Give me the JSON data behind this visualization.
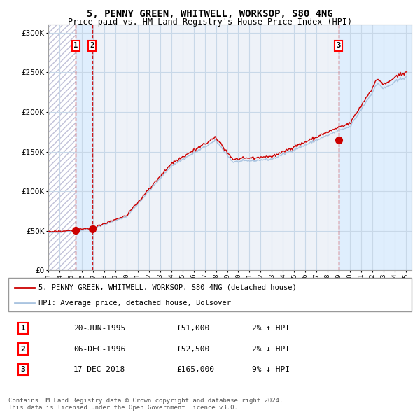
{
  "title": "5, PENNY GREEN, WHITWELL, WORKSOP, S80 4NG",
  "subtitle": "Price paid vs. HM Land Registry's House Price Index (HPI)",
  "legend_line1": "5, PENNY GREEN, WHITWELL, WORKSOP, S80 4NG (detached house)",
  "legend_line2": "HPI: Average price, detached house, Bolsover",
  "transactions": [
    {
      "num": 1,
      "date": "20-JUN-1995",
      "price": 51000,
      "pct": "2%",
      "dir": "↑",
      "year": 1995.47
    },
    {
      "num": 2,
      "date": "06-DEC-1996",
      "price": 52500,
      "pct": "2%",
      "dir": "↓",
      "year": 1996.93
    },
    {
      "num": 3,
      "date": "17-DEC-2018",
      "price": 165000,
      "pct": "9%",
      "dir": "↓",
      "year": 2018.96
    }
  ],
  "hpi_color": "#aac4e0",
  "price_color": "#cc0000",
  "dot_color": "#cc0000",
  "shade3_color": "#ddeeff",
  "hatch_color": "#c0c0d8",
  "dashed_line_color": "#cc0000",
  "grid_color": "#c8d8e8",
  "bg_color": "#eef2f8",
  "ylim": [
    0,
    310000
  ],
  "yticks": [
    0,
    50000,
    100000,
    150000,
    200000,
    250000,
    300000
  ],
  "start_year": 1993,
  "end_year": 2025,
  "footer": "Contains HM Land Registry data © Crown copyright and database right 2024.\nThis data is licensed under the Open Government Licence v3.0."
}
